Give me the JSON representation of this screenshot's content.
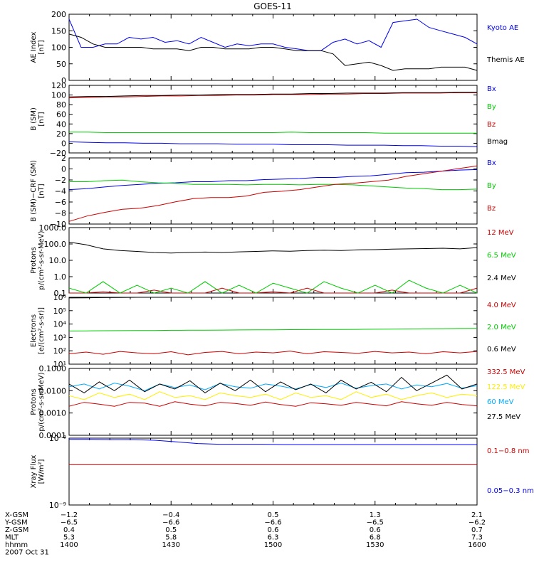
{
  "title": "GOES-11",
  "colors": {
    "black": "#000000",
    "blue": "#0000ee",
    "green": "#00cc00",
    "red": "#cc0000",
    "cyan": "#00aaff",
    "yellow": "#ffee00"
  },
  "chart_data": [
    {
      "type": "line",
      "ylabel": [
        "AE Index",
        "[nT]"
      ],
      "yticks": [
        "200",
        "150",
        "100",
        "50",
        "0"
      ],
      "ylim": [
        0,
        200
      ],
      "legend": [
        {
          "label": "Kyoto AE",
          "color": "blue"
        },
        {
          "label": "Themis AE",
          "color": "black"
        }
      ],
      "series": [
        {
          "name": "Kyoto AE",
          "color": "blue",
          "values": [
            185,
            100,
            100,
            110,
            110,
            130,
            125,
            130,
            115,
            120,
            110,
            130,
            115,
            100,
            110,
            105,
            110,
            110,
            100,
            95,
            90,
            90,
            115,
            125,
            110,
            120,
            100,
            175,
            180,
            185,
            160,
            150,
            140,
            130,
            110
          ]
        },
        {
          "name": "Themis AE",
          "color": "black",
          "values": [
            140,
            130,
            110,
            100,
            100,
            100,
            100,
            95,
            95,
            95,
            90,
            100,
            100,
            95,
            95,
            95,
            100,
            100,
            95,
            90,
            90,
            90,
            80,
            45,
            50,
            55,
            45,
            30,
            35,
            35,
            35,
            40,
            40,
            40,
            30
          ]
        }
      ]
    },
    {
      "type": "line",
      "ylabel": [
        "B (SM)",
        "[nT]"
      ],
      "yticks": [
        "120",
        "100",
        "80",
        "60",
        "40",
        "20",
        "0",
        "−20"
      ],
      "ylim": [
        -20,
        120
      ],
      "legend": [
        {
          "label": "Bx",
          "color": "blue"
        },
        {
          "label": "By",
          "color": "green"
        },
        {
          "label": "Bz",
          "color": "red"
        },
        {
          "label": "Bmag",
          "color": "black"
        }
      ],
      "series": [
        {
          "name": "Bx",
          "color": "blue",
          "values": [
            3,
            2,
            1,
            1,
            0,
            0,
            -1,
            -1,
            -1,
            -2,
            -2,
            -2,
            -3,
            -3,
            -3,
            -4,
            -4,
            -4,
            -5,
            -5,
            -6,
            -6,
            -7
          ]
        },
        {
          "name": "By",
          "color": "green",
          "values": [
            23,
            23,
            22,
            22,
            22,
            22,
            22,
            22,
            22,
            22,
            22,
            22,
            23,
            22,
            22,
            22,
            22,
            21,
            21,
            21,
            21,
            21,
            21
          ]
        },
        {
          "name": "Bz",
          "color": "red",
          "values": [
            94,
            95,
            96,
            96,
            97,
            98,
            98,
            99,
            99,
            100,
            100,
            101,
            101,
            101,
            102,
            102,
            103,
            103,
            104,
            104,
            104,
            105,
            105
          ]
        },
        {
          "name": "Bmag",
          "color": "black",
          "values": [
            96,
            97,
            97,
            98,
            99,
            99,
            100,
            100,
            101,
            101,
            101,
            102,
            102,
            103,
            103,
            104,
            104,
            104,
            105,
            105,
            105,
            106,
            106
          ]
        }
      ]
    },
    {
      "type": "line",
      "ylabel": [
        "B (SM)−CRF (SM)",
        "[nT]"
      ],
      "yticks": [
        "2",
        "0",
        "−2",
        "−4",
        "−6",
        "−8",
        "−10"
      ],
      "ylim": [
        -10,
        2.5
      ],
      "legend": [
        {
          "label": "Bx",
          "color": "blue"
        },
        {
          "label": "By",
          "color": "green"
        },
        {
          "label": "Bz",
          "color": "red"
        }
      ],
      "series": [
        {
          "name": "Bx",
          "color": "blue",
          "values": [
            -3.5,
            -3.3,
            -3.0,
            -2.7,
            -2.5,
            -2.3,
            -2.2,
            -2.0,
            -2.0,
            -1.8,
            -1.8,
            -1.6,
            -1.5,
            -1.4,
            -1.2,
            -1.2,
            -1.0,
            -0.9,
            -0.6,
            -0.3,
            -0.2,
            0.0,
            0.2,
            0.3
          ]
        },
        {
          "name": "By",
          "color": "green",
          "values": [
            -2.0,
            -2.0,
            -1.8,
            -1.7,
            -2.0,
            -2.2,
            -2.3,
            -2.5,
            -2.5,
            -2.5,
            -2.6,
            -2.5,
            -2.5,
            -2.6,
            -2.5,
            -2.5,
            -2.6,
            -2.8,
            -3.0,
            -3.2,
            -3.3,
            -3.5,
            -3.5,
            -3.4
          ]
        },
        {
          "name": "Bz",
          "color": "red",
          "values": [
            -9.5,
            -8.5,
            -7.8,
            -7.2,
            -7.0,
            -6.5,
            -5.8,
            -5.2,
            -5.0,
            -5.0,
            -4.7,
            -4.0,
            -3.8,
            -3.5,
            -3.0,
            -2.5,
            -2.3,
            -2.0,
            -1.7,
            -1.0,
            -0.5,
            0.0,
            0.5,
            1.0
          ]
        }
      ]
    },
    {
      "type": "line",
      "ylabel": [
        "Protons",
        "p/(cm²-s-sr-MeV)"
      ],
      "yticks": [
        "1000.0",
        "100.0",
        "10.0",
        "1.0",
        "0.1"
      ],
      "ylog": true,
      "ylim": [
        0.1,
        1000
      ],
      "legend": [
        {
          "label": "12 MeV",
          "color": "red"
        },
        {
          "label": "6.5 MeV",
          "color": "green"
        },
        {
          "label": "2.4 MeV",
          "color": "black"
        }
      ],
      "series": [
        {
          "name": "12 MeV",
          "color": "red",
          "values": [
            0.1,
            0.1,
            0.12,
            0.1,
            0.1,
            0.15,
            0.1,
            0.1,
            0.1,
            0.2,
            0.1,
            0.1,
            0.12,
            0.1,
            0.2,
            0.1,
            0.1,
            0.1,
            0.1,
            0.15,
            0.1,
            0.1,
            0.1,
            0.1,
            0.2
          ]
        },
        {
          "name": "6.5 MeV",
          "color": "green",
          "values": [
            0.2,
            0.1,
            0.5,
            0.1,
            0.3,
            0.1,
            0.2,
            0.1,
            0.5,
            0.1,
            0.3,
            0.1,
            0.4,
            0.2,
            0.1,
            0.5,
            0.2,
            0.1,
            0.3,
            0.1,
            0.6,
            0.2,
            0.1,
            0.3,
            0.1
          ]
        },
        {
          "name": "2.4 MeV",
          "color": "black",
          "values": [
            130,
            90,
            50,
            40,
            35,
            30,
            28,
            30,
            32,
            30,
            33,
            35,
            38,
            36,
            40,
            42,
            40,
            44,
            45,
            48,
            50,
            52,
            55,
            50,
            60
          ]
        }
      ]
    },
    {
      "type": "line",
      "ylabel": [
        "Electrons",
        "[e/(cm²-s-sr)]"
      ],
      "yticks": [
        "10⁶",
        "10⁵",
        "10⁴",
        "10³",
        "10²",
        "10¹"
      ],
      "ylog": true,
      "ylim": [
        10,
        1000000
      ],
      "legend": [
        {
          "label": "4.0 MeV",
          "color": "red"
        },
        {
          "label": "2.0 MeV",
          "color": "green"
        },
        {
          "label": "0.6 MeV",
          "color": "black"
        }
      ],
      "series": [
        {
          "name": "4.0 MeV",
          "color": "red",
          "values": [
            60,
            80,
            55,
            90,
            70,
            60,
            85,
            50,
            75,
            90,
            60,
            80,
            70,
            95,
            60,
            85,
            75,
            65,
            90,
            70,
            80,
            60,
            85,
            70,
            90
          ]
        },
        {
          "name": "2.0 MeV",
          "color": "green",
          "values": [
            3000,
            3100,
            3150,
            3200,
            3250,
            3300,
            3400,
            3450,
            3500,
            3550,
            3600,
            3650,
            3700,
            3800,
            3850,
            3900,
            3950,
            4000,
            4100,
            4200,
            4300,
            4400,
            4500,
            4600,
            4700
          ]
        },
        {
          "name": "0.6 MeV",
          "color": "black",
          "values": [
            900000,
            920000,
            950000,
            980000,
            1000000,
            1000000,
            1000000,
            1000000,
            1000000,
            1000000,
            1000000,
            1000000,
            1000000,
            1000000,
            1000000,
            1000000,
            1000000,
            1000000,
            1000000,
            1000000,
            1000000,
            1000000,
            1000000,
            1000000,
            1000000
          ]
        }
      ]
    },
    {
      "type": "line",
      "ylabel": [
        "Protons",
        "p/(cm²-s-sr-MeV)"
      ],
      "yticks": [
        "0.1000",
        "0.0100",
        "0.0010",
        "0.0001"
      ],
      "ylog": true,
      "ylim": [
        0.0001,
        0.1
      ],
      "legend": [
        {
          "label": "332.5 MeV",
          "color": "red"
        },
        {
          "label": "122.5 MeV",
          "color": "yellow"
        },
        {
          "label": "60 MeV",
          "color": "cyan"
        },
        {
          "label": "27.5 MeV",
          "color": "black"
        }
      ],
      "series": [
        {
          "name": "332.5 MeV",
          "color": "red",
          "values": [
            0.002,
            0.003,
            0.0025,
            0.002,
            0.003,
            0.0028,
            0.002,
            0.0032,
            0.0025,
            0.0021,
            0.003,
            0.0027,
            0.0022,
            0.0031,
            0.0024,
            0.002,
            0.0029,
            0.0026,
            0.0022,
            0.003,
            0.0025,
            0.0021,
            0.0032,
            0.0026,
            0.0022,
            0.003,
            0.0024,
            0.0021
          ]
        },
        {
          "name": "122.5 MeV",
          "color": "yellow",
          "values": [
            0.006,
            0.004,
            0.008,
            0.005,
            0.007,
            0.004,
            0.009,
            0.005,
            0.006,
            0.004,
            0.008,
            0.006,
            0.005,
            0.007,
            0.004,
            0.008,
            0.005,
            0.006,
            0.004,
            0.009,
            0.005,
            0.007,
            0.004,
            0.006,
            0.008,
            0.005,
            0.007,
            0.006
          ]
        },
        {
          "name": "60 MeV",
          "color": "cyan",
          "values": [
            0.015,
            0.02,
            0.012,
            0.022,
            0.016,
            0.01,
            0.02,
            0.014,
            0.018,
            0.011,
            0.021,
            0.015,
            0.013,
            0.02,
            0.016,
            0.012,
            0.019,
            0.014,
            0.022,
            0.013,
            0.017,
            0.02,
            0.012,
            0.018,
            0.015,
            0.021,
            0.013,
            0.017
          ]
        },
        {
          "name": "27.5 MeV",
          "color": "black",
          "values": [
            0.02,
            0.008,
            0.025,
            0.01,
            0.03,
            0.009,
            0.02,
            0.012,
            0.028,
            0.008,
            0.022,
            0.01,
            0.03,
            0.009,
            0.025,
            0.011,
            0.02,
            0.008,
            0.03,
            0.012,
            0.024,
            0.009,
            0.04,
            0.01,
            0.022,
            0.05,
            0.012,
            0.02
          ]
        }
      ]
    },
    {
      "type": "line",
      "ylabel": [
        "Xray Flux",
        "[W/m²]"
      ],
      "yticks": [
        "10⁻⁸",
        "10⁻⁹"
      ],
      "ylog": true,
      "ylim": [
        1e-09,
        1e-08
      ],
      "legend": [
        {
          "label": "0.1−0.8 nm",
          "color": "red"
        },
        {
          "label": "0.05−0.3 nm",
          "color": "blue"
        }
      ],
      "series": [
        {
          "name": "0.1−0.8 nm",
          "color": "red",
          "values": [
            4e-09,
            4e-09,
            4e-09,
            4e-09,
            4e-09,
            4e-09,
            4e-09,
            4e-09,
            4e-09,
            4e-09,
            4e-09,
            4e-09,
            4e-09,
            4e-09,
            4e-09,
            4e-09,
            4e-09,
            4e-09,
            4e-09,
            4e-09
          ]
        },
        {
          "name": "0.05−0.3 nm",
          "color": "blue",
          "values": [
            9.6e-09,
            9.6e-09,
            9.5e-09,
            9.5e-09,
            9.3e-09,
            8.8e-09,
            8.3e-09,
            8.1e-09,
            8.1e-09,
            8.1e-09,
            8e-09,
            8e-09,
            8e-09,
            8e-09,
            8e-09,
            8e-09,
            8e-09,
            8e-09,
            8e-09,
            8e-09
          ]
        }
      ]
    }
  ],
  "x_axis": {
    "row_labels": [
      "X-GSM",
      "Y-GSM",
      "Z-GSM",
      "MLT",
      "hhmm"
    ],
    "columns": [
      [
        "−1.2",
        "−6.5",
        "0.4",
        "5.3",
        "1400"
      ],
      [
        "−0.4",
        "−6.6",
        "0.5",
        "5.8",
        "1430"
      ],
      [
        "0.5",
        "−6.6",
        "0.6",
        "6.3",
        "1500"
      ],
      [
        "1.3",
        "−6.5",
        "0.6",
        "6.8",
        "1530"
      ],
      [
        "2.1",
        "−6.2",
        "0.7",
        "7.3",
        "1600"
      ]
    ],
    "date": "2007 Oct 31"
  }
}
